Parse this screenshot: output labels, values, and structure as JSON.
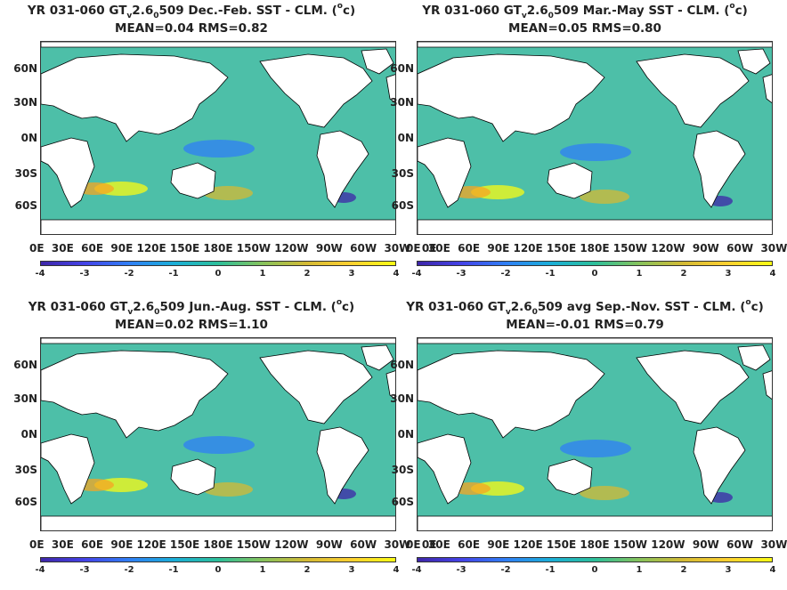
{
  "panels": [
    {
      "title": {
        "prefix": "YR 031-060 GT",
        "sub_v": "v",
        "mid": "2.6",
        "sub_o": "0",
        "rest": "509  Dec.-Feb. SST - CLM. (",
        "sup": "o",
        "end": "c)"
      },
      "stats": "MEAN=0.04   RMS=0.82"
    },
    {
      "title": {
        "prefix": "YR 031-060 GT",
        "sub_v": "v",
        "mid": "2.6",
        "sub_o": "0",
        "rest": "509 Mar.-May SST - CLM. (",
        "sup": "o",
        "end": "c)"
      },
      "stats": "MEAN=0.05   RMS=0.80"
    },
    {
      "title": {
        "prefix": "YR 031-060 GT",
        "sub_v": "v",
        "mid": "2.6",
        "sub_o": "0",
        "rest": "509 Jun.-Aug. SST - CLM. (",
        "sup": "o",
        "end": "c)"
      },
      "stats": "MEAN=0.02   RMS=1.10"
    },
    {
      "title": {
        "prefix": "YR 031-060 GT",
        "sub_v": "v",
        "mid": "2.6",
        "sub_o": "0",
        "rest": "509 avg Sep.-Nov. SST - CLM. (",
        "sup": "o",
        "end": "c)"
      },
      "stats": "MEAN=-0.01   RMS=0.79"
    }
  ],
  "lat_labels": [
    "60N",
    "30N",
    "0N",
    "30S",
    "60S"
  ],
  "lon_labels": "0E  30E  60E  90E 120E 150E 180E 150W 120W  90W  60W  30W   0E",
  "colorbar_ticks": [
    "-4",
    "-3",
    "-2",
    "-1",
    "0",
    "1",
    "2",
    "3",
    "4"
  ],
  "colors": {
    "ocean": "#4dbfa8",
    "land": "#ffffff",
    "cold": "#3e26a8",
    "warm": "#f9fb14"
  }
}
